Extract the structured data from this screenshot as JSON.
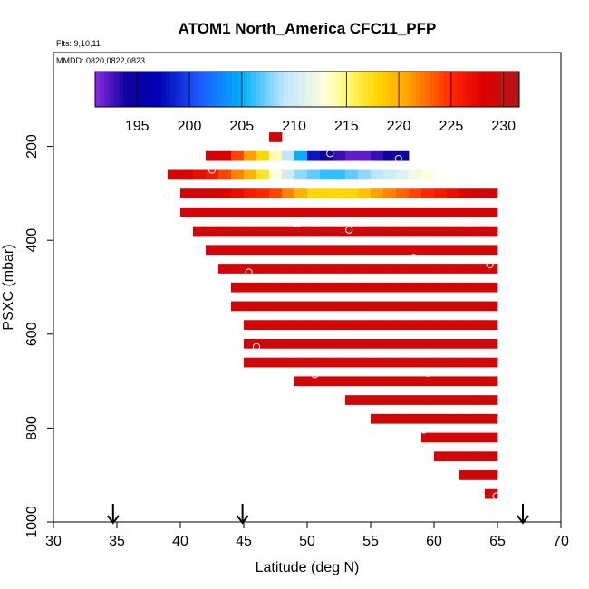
{
  "chart_data": {
    "type": "heatmap",
    "title": "ATOM1 North_America CFC11_PFP",
    "flights_label": "Flts: 9,10,11",
    "dates_label": "MMDD: 0820,0822,0823",
    "xlabel": "Latitude (deg N)",
    "ylabel": "PSXC (mbar)",
    "xlim": [
      30,
      70
    ],
    "ylim": [
      1000,
      0
    ],
    "x_ticks": [
      "30",
      "35",
      "40",
      "45",
      "50",
      "55",
      "60",
      "65",
      "70"
    ],
    "y_ticks": [
      "200",
      "400",
      "600",
      "800",
      "1000"
    ],
    "colorbar": {
      "range": [
        191,
        231.5
      ],
      "ticks": [
        "195",
        "200",
        "205",
        "210",
        "215",
        "220",
        "225",
        "230"
      ],
      "tick_values": [
        195,
        200,
        205,
        210,
        215,
        220,
        225,
        230
      ]
    },
    "cell_size": {
      "dx": 1,
      "dp": 20
    },
    "rows": [
      {
        "p": 180,
        "lat_start": 47,
        "values": [
          229
        ]
      },
      {
        "p": 220,
        "lat_start": 42,
        "values": [
          229,
          228,
          224,
          221,
          218,
          214,
          209,
          205,
          198,
          195,
          193,
          192,
          192,
          193,
          194,
          195
        ]
      },
      {
        "p": 260,
        "lat_start": 39,
        "values": [
          229,
          228,
          227,
          226,
          224,
          222,
          220,
          217,
          213,
          210,
          208,
          207,
          206,
          206,
          207,
          208,
          209,
          210,
          211,
          212,
          213
        ]
      },
      {
        "p": 300,
        "lat_start": 40,
        "values": [
          229,
          229,
          229,
          228,
          227,
          226,
          225,
          224,
          222,
          220,
          218,
          218,
          218,
          218,
          219,
          221,
          222,
          223,
          224,
          225,
          226,
          227,
          228,
          229,
          229
        ]
      },
      {
        "p": 340,
        "lat_start": 40,
        "values": [
          229,
          229,
          229,
          229,
          229,
          229,
          229,
          229,
          229,
          229,
          229,
          229,
          229,
          229,
          229,
          229,
          229,
          229,
          229,
          229,
          229,
          229,
          229,
          229,
          229
        ]
      },
      {
        "p": 380,
        "lat_start": 41,
        "values": [
          229,
          229,
          229,
          229,
          229,
          229,
          229,
          229,
          229,
          229,
          229,
          229,
          229,
          229,
          229,
          229,
          229,
          229,
          229,
          229,
          229,
          229,
          229,
          229
        ]
      },
      {
        "p": 420,
        "lat_start": 42,
        "values": [
          229,
          229,
          229,
          229,
          229,
          229,
          229,
          229,
          229,
          229,
          229,
          229,
          229,
          229,
          229,
          229,
          229,
          229,
          229,
          229,
          229,
          229,
          229
        ]
      },
      {
        "p": 460,
        "lat_start": 43,
        "values": [
          229,
          229,
          229,
          229,
          229,
          229,
          229,
          229,
          229,
          229,
          229,
          229,
          229,
          229,
          229,
          229,
          229,
          229,
          229,
          229,
          229,
          229
        ]
      },
      {
        "p": 500,
        "lat_start": 44,
        "values": [
          229,
          229,
          229,
          229,
          229,
          229,
          229,
          229,
          229,
          229,
          229,
          229,
          229,
          229,
          229,
          229,
          229,
          229,
          229,
          229,
          229
        ]
      },
      {
        "p": 540,
        "lat_start": 44,
        "values": [
          229,
          229,
          229,
          229,
          229,
          229,
          229,
          229,
          229,
          229,
          229,
          229,
          229,
          229,
          229,
          229,
          229,
          229,
          229,
          229,
          229
        ]
      },
      {
        "p": 580,
        "lat_start": 45,
        "values": [
          229,
          229,
          229,
          229,
          229,
          229,
          229,
          229,
          229,
          229,
          229,
          229,
          229,
          229,
          229,
          229,
          229,
          229,
          229,
          229
        ]
      },
      {
        "p": 620,
        "lat_start": 45,
        "values": [
          229,
          229,
          229,
          229,
          229,
          229,
          229,
          229,
          229,
          229,
          229,
          229,
          229,
          229,
          229,
          229,
          229,
          229,
          229,
          229
        ]
      },
      {
        "p": 660,
        "lat_start": 45,
        "values": [
          229,
          229,
          229,
          229,
          229,
          229,
          229,
          229,
          229,
          229,
          229,
          229,
          229,
          229,
          229,
          229,
          229,
          229,
          229,
          229
        ]
      },
      {
        "p": 700,
        "lat_start": 49,
        "values": [
          229,
          229,
          229,
          229,
          229,
          229,
          229,
          229,
          229,
          229,
          229,
          229,
          229,
          229,
          229,
          229
        ]
      },
      {
        "p": 740,
        "lat_start": 53,
        "values": [
          229,
          229,
          229,
          229,
          229,
          229,
          229,
          229,
          229,
          229,
          229,
          229
        ]
      },
      {
        "p": 780,
        "lat_start": 55,
        "values": [
          229,
          229,
          229,
          229,
          229,
          229,
          229,
          229,
          229,
          229
        ]
      },
      {
        "p": 820,
        "lat_start": 59,
        "values": [
          229,
          229,
          229,
          229,
          229,
          229
        ]
      },
      {
        "p": 860,
        "lat_start": 60,
        "values": [
          229,
          229,
          229,
          229,
          229
        ]
      },
      {
        "p": 900,
        "lat_start": 62,
        "values": [
          229,
          229,
          229
        ]
      },
      {
        "p": 940,
        "lat_start": 64,
        "values": [
          229
        ]
      }
    ],
    "observations": [
      {
        "lat": 47.4,
        "p": 205
      },
      {
        "lat": 51.8,
        "p": 215
      },
      {
        "lat": 57.2,
        "p": 226
      },
      {
        "lat": 42.5,
        "p": 250
      },
      {
        "lat": 39.0,
        "p": 305
      },
      {
        "lat": 49.2,
        "p": 365
      },
      {
        "lat": 53.3,
        "p": 378
      },
      {
        "lat": 63.4,
        "p": 360
      },
      {
        "lat": 65.9,
        "p": 360
      },
      {
        "lat": 58.4,
        "p": 437
      },
      {
        "lat": 64.4,
        "p": 452
      },
      {
        "lat": 45.4,
        "p": 468
      },
      {
        "lat": 46.0,
        "p": 627
      },
      {
        "lat": 50.6,
        "p": 686
      },
      {
        "lat": 59.5,
        "p": 683
      },
      {
        "lat": 65.3,
        "p": 782
      },
      {
        "lat": 59.2,
        "p": 804
      },
      {
        "lat": 64.9,
        "p": 945
      }
    ],
    "arrows": [
      {
        "lat": 34.7
      },
      {
        "lat": 44.9
      },
      {
        "lat": 67.0
      }
    ]
  }
}
